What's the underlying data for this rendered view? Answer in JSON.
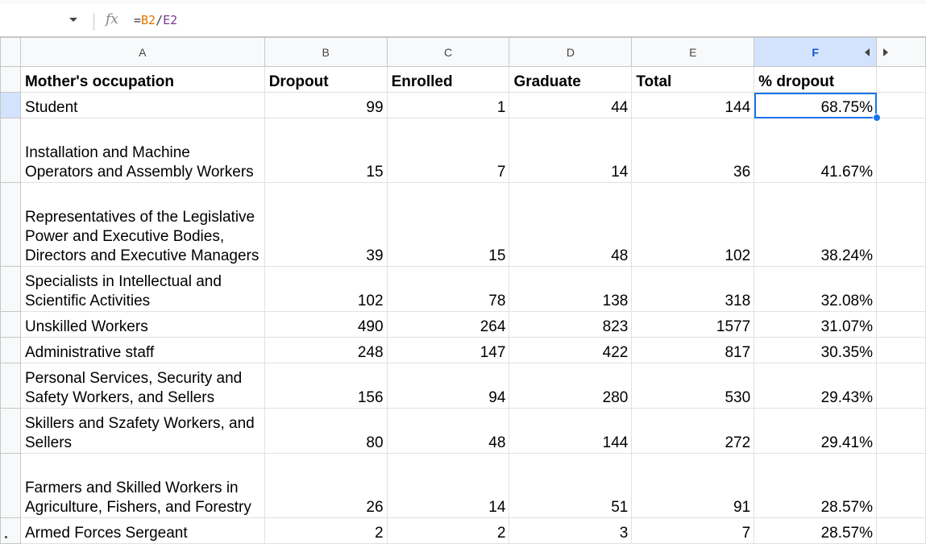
{
  "formula_bar": {
    "fx_icon": "fx",
    "formula": {
      "eq": "=",
      "ref1": "B2",
      "slash": "/",
      "ref2": "E2"
    }
  },
  "columns": [
    "A",
    "B",
    "C",
    "D",
    "E",
    "F"
  ],
  "selected_column": "F",
  "header_row": [
    "Mother's occupation",
    "Dropout",
    "Enrolled",
    "Graduate",
    "Total",
    "% dropout"
  ],
  "rows": [
    {
      "occupation": "Student",
      "dropout": "99",
      "enrolled": "1",
      "graduate": "44",
      "total": "144",
      "pct": "68.75%"
    },
    {
      "occupation": "Installation and Machine Operators and Assembly Workers",
      "dropout": "15",
      "enrolled": "7",
      "graduate": "14",
      "total": "36",
      "pct": "41.67%"
    },
    {
      "occupation": "Representatives of the Legislative Power and Executive Bodies, Directors and Executive Managers",
      "dropout": "39",
      "enrolled": "15",
      "graduate": "48",
      "total": "102",
      "pct": "38.24%"
    },
    {
      "occupation": "Specialists in Intellectual and Scientific Activities",
      "dropout": "102",
      "enrolled": "78",
      "graduate": "138",
      "total": "318",
      "pct": "32.08%"
    },
    {
      "occupation": "Unskilled Workers",
      "dropout": "490",
      "enrolled": "264",
      "graduate": "823",
      "total": "1577",
      "pct": "31.07%"
    },
    {
      "occupation": "Administrative staff",
      "dropout": "248",
      "enrolled": "147",
      "graduate": "422",
      "total": "817",
      "pct": "30.35%"
    },
    {
      "occupation": "Personal Services, Security and Safety Workers, and Sellers",
      "dropout": "156",
      "enrolled": "94",
      "graduate": "280",
      "total": "530",
      "pct": "29.43%"
    },
    {
      "occupation": "Skillers and Szafety Workers, and Sellers",
      "dropout": "80",
      "enrolled": "48",
      "graduate": "144",
      "total": "272",
      "pct": "29.41%"
    },
    {
      "occupation": "Farmers and Skilled Workers in Agriculture, Fishers, and Forestry",
      "dropout": "26",
      "enrolled": "14",
      "graduate": "51",
      "total": "91",
      "pct": "28.57%"
    },
    {
      "occupation": "Armed Forces Sergeant",
      "dropout": "2",
      "enrolled": "2",
      "graduate": "3",
      "total": "7",
      "pct": "28.57%"
    }
  ],
  "colors": {
    "selection_blue": "#1a73e8",
    "header_selected_bg": "#d3e3fd",
    "gridline": "#e1e1e1"
  }
}
